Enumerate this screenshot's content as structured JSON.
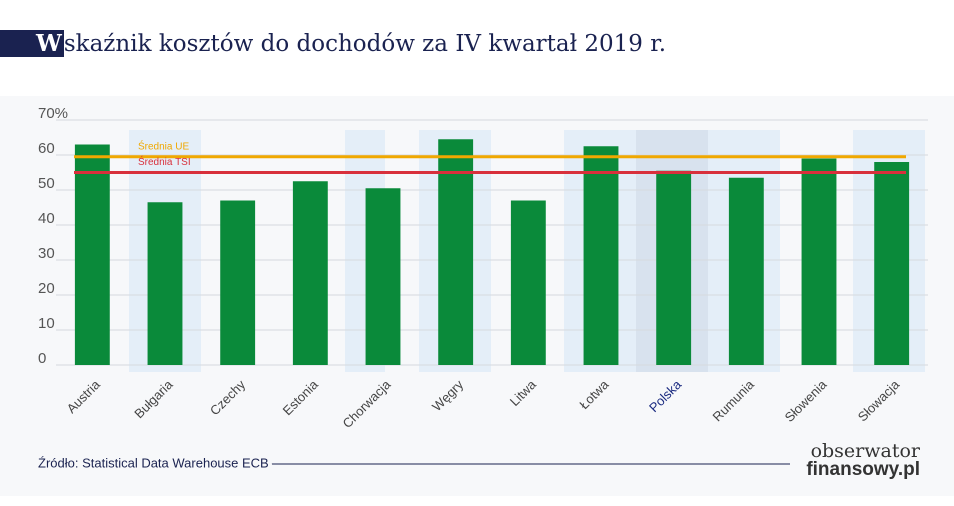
{
  "chart_data": {
    "type": "bar",
    "title": "Wskaźnik kosztów do dochodów za IV kwartał 2019 r.",
    "categories": [
      "Austria",
      "Bułgaria",
      "Czechy",
      "Estonia",
      "Chorwacja",
      "Węgry",
      "Litwa",
      "Łotwa",
      "Polska",
      "Rumunia",
      "Słowenia",
      "Słowacja"
    ],
    "values": [
      63,
      46.5,
      47,
      52.5,
      50.5,
      64.5,
      47,
      62.5,
      55.5,
      53.5,
      59,
      58
    ],
    "color": "#0a8a3a",
    "ylim": [
      0,
      70
    ],
    "yticks": [
      0,
      10,
      20,
      30,
      40,
      50,
      60,
      {
        "value": 70,
        "label": "70%"
      }
    ],
    "grid": true,
    "reference_lines": [
      {
        "label": "Średnia UE",
        "value": 59.5,
        "color": "#f0a800"
      },
      {
        "label": "Średnia TSI",
        "value": 55,
        "color": "#d8303c"
      }
    ],
    "source": "Źródło: Statistical Data Warehouse ECB",
    "brand": [
      "obserwator",
      "finansowy.pl"
    ]
  }
}
